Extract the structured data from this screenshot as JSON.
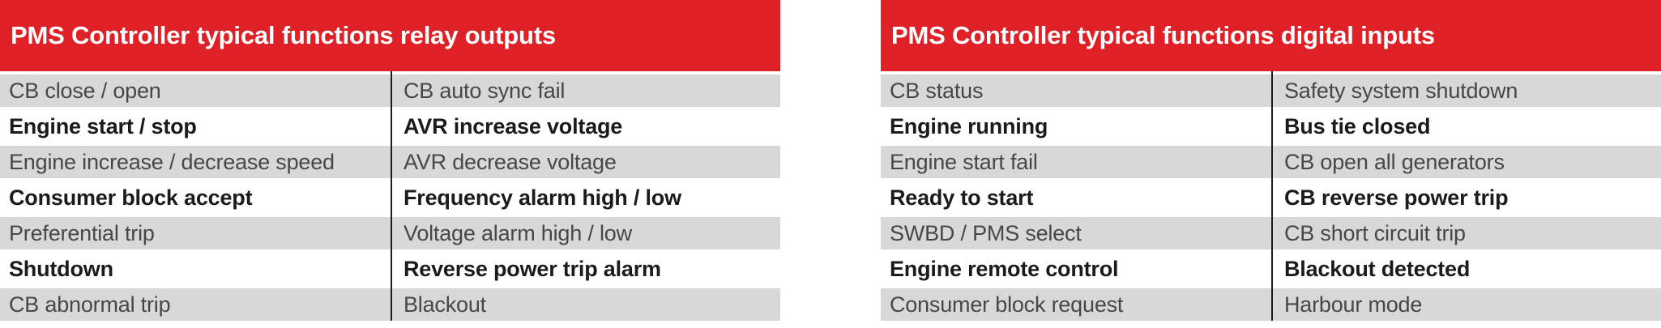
{
  "tables": [
    {
      "title": "PMS Controller typical functions relay outputs",
      "rows": [
        [
          "CB close / open",
          "CB auto sync fail"
        ],
        [
          "Engine start / stop",
          "AVR increase voltage"
        ],
        [
          "Engine increase / decrease speed",
          "AVR decrease voltage"
        ],
        [
          "Consumer block accept",
          "Frequency alarm high / low"
        ],
        [
          "Preferential trip",
          "Voltage alarm high / low"
        ],
        [
          "Shutdown",
          "Reverse power trip alarm"
        ],
        [
          "CB abnormal trip",
          "Blackout"
        ]
      ]
    },
    {
      "title": "PMS Controller typical functions digital inputs",
      "rows": [
        [
          "CB status",
          "Safety system shutdown"
        ],
        [
          "Engine running",
          "Bus tie closed"
        ],
        [
          "Engine start fail",
          "CB open all generators"
        ],
        [
          "Ready to start",
          "CB reverse power trip"
        ],
        [
          "SWBD / PMS select",
          "CB short circuit trip"
        ],
        [
          "Engine remote control",
          "Blackout detected"
        ],
        [
          "Consumer block request",
          "Harbour mode"
        ]
      ]
    }
  ],
  "colors": {
    "header_bg": "#e02027",
    "header_text": "#ffffff",
    "row_alt_bg": "#d8d8d8",
    "text_regular": "#474746",
    "text_bold": "#1b1b19",
    "divider": "#1c1c1c"
  }
}
